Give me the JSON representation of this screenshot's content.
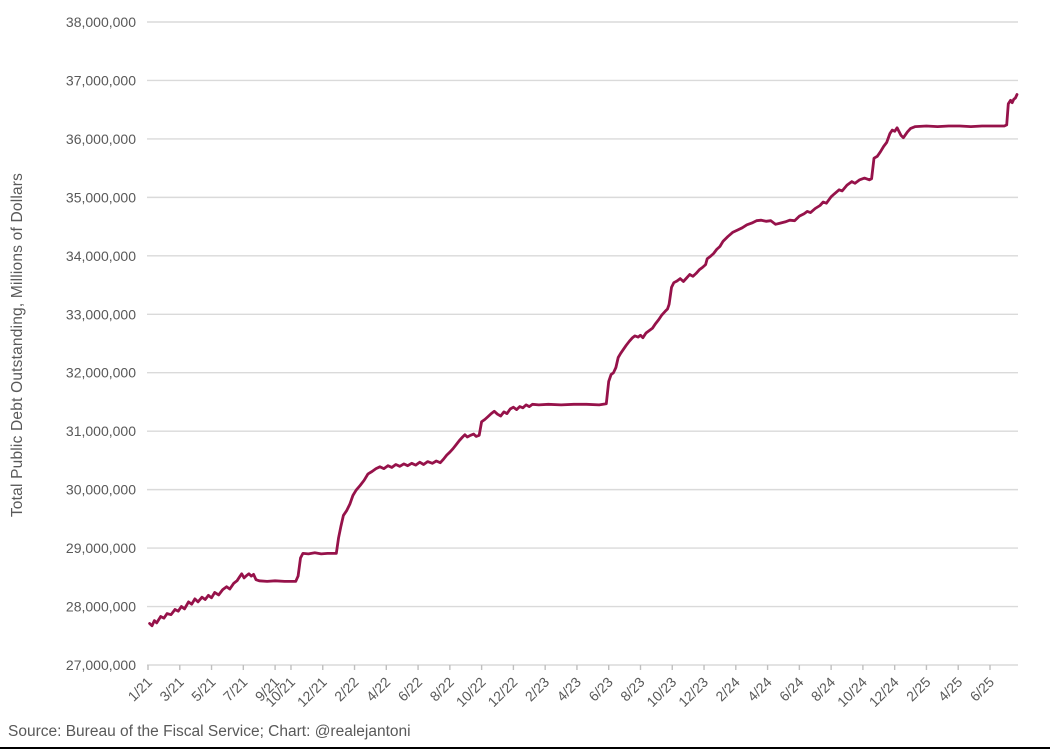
{
  "meta": {
    "source_caption": "Source: Bureau of the Fiscal Service; Chart: @realejantoni"
  },
  "colors": {
    "line": "#96124A",
    "grid": "#DADADA",
    "tick": "#BFBFBF",
    "text": "#595959",
    "background": "#FFFFFF",
    "bottom_border": "#000000"
  },
  "chart_data": {
    "type": "line",
    "title": "",
    "xlabel": "",
    "ylabel": "Total Public Debt Outstanding, Millions of Dollars",
    "grid": true,
    "legend_position": "none",
    "ylim": [
      27000000,
      38000000
    ],
    "y_tick_step": 1000000,
    "y_tick_labels": [
      "27,000,000",
      "28,000,000",
      "29,000,000",
      "30,000,000",
      "31,000,000",
      "32,000,000",
      "33,000,000",
      "34,000,000",
      "35,000,000",
      "36,000,000",
      "37,000,000",
      "38,000,000"
    ],
    "x_tick_labels": [
      "1/21",
      "3/21",
      "5/21",
      "7/21",
      "9/21",
      "10/21",
      "12/21",
      "2/22",
      "4/22",
      "6/22",
      "8/22",
      "10/22",
      "12/22",
      "2/23",
      "4/23",
      "6/23",
      "8/23",
      "10/23",
      "12/23",
      "2/24",
      "4/24",
      "6/24",
      "8/24",
      "10/24",
      "12/24",
      "2/25",
      "4/25",
      "6/25"
    ],
    "x_tick_months": [
      0,
      2,
      4,
      6,
      8,
      9,
      11,
      13,
      15,
      17,
      19,
      21,
      23,
      25,
      27,
      29,
      31,
      33,
      35,
      37,
      39,
      41,
      43,
      45,
      47,
      49,
      51,
      53
    ],
    "x_unit": "months since January 2021 (labels shown as month/year)",
    "series": [
      {
        "name": "Total Public Debt Outstanding, Millions of Dollars",
        "color": "#96124A",
        "points": [
          [
            0.1,
            27710000
          ],
          [
            0.25,
            27670000
          ],
          [
            0.4,
            27760000
          ],
          [
            0.55,
            27720000
          ],
          [
            0.8,
            27830000
          ],
          [
            1.0,
            27800000
          ],
          [
            1.2,
            27880000
          ],
          [
            1.45,
            27860000
          ],
          [
            1.7,
            27950000
          ],
          [
            1.9,
            27920000
          ],
          [
            2.1,
            28000000
          ],
          [
            2.3,
            27960000
          ],
          [
            2.55,
            28080000
          ],
          [
            2.75,
            28040000
          ],
          [
            2.95,
            28130000
          ],
          [
            3.15,
            28080000
          ],
          [
            3.4,
            28160000
          ],
          [
            3.6,
            28120000
          ],
          [
            3.8,
            28190000
          ],
          [
            4.0,
            28150000
          ],
          [
            4.2,
            28240000
          ],
          [
            4.45,
            28200000
          ],
          [
            4.7,
            28290000
          ],
          [
            4.95,
            28340000
          ],
          [
            5.15,
            28300000
          ],
          [
            5.4,
            28400000
          ],
          [
            5.6,
            28440000
          ],
          [
            5.75,
            28500000
          ],
          [
            5.9,
            28560000
          ],
          [
            6.05,
            28490000
          ],
          [
            6.2,
            28530000
          ],
          [
            6.35,
            28560000
          ],
          [
            6.5,
            28520000
          ],
          [
            6.65,
            28550000
          ],
          [
            6.8,
            28460000
          ],
          [
            7.0,
            28440000
          ],
          [
            7.5,
            28430000
          ],
          [
            8.0,
            28440000
          ],
          [
            8.6,
            28430000
          ],
          [
            9.3,
            28430000
          ],
          [
            9.45,
            28520000
          ],
          [
            9.6,
            28830000
          ],
          [
            9.75,
            28910000
          ],
          [
            10.1,
            28900000
          ],
          [
            10.5,
            28920000
          ],
          [
            10.9,
            28900000
          ],
          [
            11.3,
            28910000
          ],
          [
            11.85,
            28910000
          ],
          [
            12.0,
            29180000
          ],
          [
            12.15,
            29380000
          ],
          [
            12.3,
            29560000
          ],
          [
            12.5,
            29640000
          ],
          [
            12.7,
            29750000
          ],
          [
            12.9,
            29900000
          ],
          [
            13.1,
            29990000
          ],
          [
            13.35,
            30070000
          ],
          [
            13.6,
            30160000
          ],
          [
            13.85,
            30270000
          ],
          [
            14.1,
            30310000
          ],
          [
            14.35,
            30360000
          ],
          [
            14.6,
            30390000
          ],
          [
            14.85,
            30360000
          ],
          [
            15.1,
            30410000
          ],
          [
            15.35,
            30380000
          ],
          [
            15.6,
            30430000
          ],
          [
            15.85,
            30400000
          ],
          [
            16.1,
            30440000
          ],
          [
            16.35,
            30410000
          ],
          [
            16.6,
            30450000
          ],
          [
            16.85,
            30420000
          ],
          [
            17.1,
            30470000
          ],
          [
            17.35,
            30430000
          ],
          [
            17.6,
            30480000
          ],
          [
            17.9,
            30450000
          ],
          [
            18.15,
            30490000
          ],
          [
            18.4,
            30460000
          ],
          [
            18.6,
            30520000
          ],
          [
            18.8,
            30590000
          ],
          [
            19.0,
            30640000
          ],
          [
            19.2,
            30700000
          ],
          [
            19.4,
            30770000
          ],
          [
            19.6,
            30840000
          ],
          [
            19.8,
            30900000
          ],
          [
            19.95,
            30940000
          ],
          [
            20.1,
            30900000
          ],
          [
            20.3,
            30930000
          ],
          [
            20.5,
            30950000
          ],
          [
            20.65,
            30910000
          ],
          [
            20.85,
            30930000
          ],
          [
            21.0,
            31160000
          ],
          [
            21.2,
            31200000
          ],
          [
            21.4,
            31250000
          ],
          [
            21.6,
            31300000
          ],
          [
            21.8,
            31340000
          ],
          [
            22.0,
            31290000
          ],
          [
            22.2,
            31260000
          ],
          [
            22.4,
            31330000
          ],
          [
            22.6,
            31300000
          ],
          [
            22.8,
            31380000
          ],
          [
            23.0,
            31410000
          ],
          [
            23.2,
            31370000
          ],
          [
            23.4,
            31420000
          ],
          [
            23.6,
            31400000
          ],
          [
            23.8,
            31450000
          ],
          [
            24.0,
            31420000
          ],
          [
            24.2,
            31460000
          ],
          [
            24.6,
            31450000
          ],
          [
            25.2,
            31460000
          ],
          [
            26.0,
            31450000
          ],
          [
            26.8,
            31460000
          ],
          [
            27.6,
            31460000
          ],
          [
            28.4,
            31450000
          ],
          [
            28.85,
            31470000
          ],
          [
            29.0,
            31850000
          ],
          [
            29.15,
            31970000
          ],
          [
            29.3,
            32000000
          ],
          [
            29.45,
            32090000
          ],
          [
            29.6,
            32260000
          ],
          [
            29.75,
            32330000
          ],
          [
            29.9,
            32390000
          ],
          [
            30.1,
            32470000
          ],
          [
            30.3,
            32540000
          ],
          [
            30.5,
            32600000
          ],
          [
            30.65,
            32630000
          ],
          [
            30.85,
            32610000
          ],
          [
            31.0,
            32640000
          ],
          [
            31.15,
            32600000
          ],
          [
            31.35,
            32680000
          ],
          [
            31.55,
            32720000
          ],
          [
            31.75,
            32760000
          ],
          [
            31.95,
            32840000
          ],
          [
            32.15,
            32910000
          ],
          [
            32.35,
            32990000
          ],
          [
            32.55,
            33050000
          ],
          [
            32.7,
            33090000
          ],
          [
            32.8,
            33170000
          ],
          [
            32.95,
            33460000
          ],
          [
            33.1,
            33540000
          ],
          [
            33.3,
            33570000
          ],
          [
            33.5,
            33610000
          ],
          [
            33.7,
            33560000
          ],
          [
            33.9,
            33620000
          ],
          [
            34.1,
            33680000
          ],
          [
            34.3,
            33650000
          ],
          [
            34.5,
            33700000
          ],
          [
            34.7,
            33760000
          ],
          [
            34.9,
            33800000
          ],
          [
            35.1,
            33850000
          ],
          [
            35.2,
            33950000
          ],
          [
            35.4,
            33990000
          ],
          [
            35.6,
            34040000
          ],
          [
            35.8,
            34110000
          ],
          [
            36.0,
            34160000
          ],
          [
            36.2,
            34250000
          ],
          [
            36.5,
            34330000
          ],
          [
            36.8,
            34400000
          ],
          [
            37.1,
            34440000
          ],
          [
            37.4,
            34480000
          ],
          [
            37.7,
            34530000
          ],
          [
            38.0,
            34560000
          ],
          [
            38.3,
            34600000
          ],
          [
            38.6,
            34610000
          ],
          [
            38.9,
            34590000
          ],
          [
            39.2,
            34600000
          ],
          [
            39.5,
            34540000
          ],
          [
            39.8,
            34560000
          ],
          [
            40.1,
            34580000
          ],
          [
            40.4,
            34610000
          ],
          [
            40.7,
            34600000
          ],
          [
            41.0,
            34680000
          ],
          [
            41.3,
            34720000
          ],
          [
            41.5,
            34760000
          ],
          [
            41.7,
            34740000
          ],
          [
            42.0,
            34810000
          ],
          [
            42.3,
            34860000
          ],
          [
            42.5,
            34920000
          ],
          [
            42.7,
            34900000
          ],
          [
            43.0,
            35010000
          ],
          [
            43.2,
            35060000
          ],
          [
            43.5,
            35130000
          ],
          [
            43.7,
            35110000
          ],
          [
            44.0,
            35210000
          ],
          [
            44.3,
            35270000
          ],
          [
            44.5,
            35240000
          ],
          [
            44.8,
            35300000
          ],
          [
            45.1,
            35330000
          ],
          [
            45.4,
            35300000
          ],
          [
            45.55,
            35320000
          ],
          [
            45.7,
            35670000
          ],
          [
            45.9,
            35700000
          ],
          [
            46.1,
            35780000
          ],
          [
            46.3,
            35870000
          ],
          [
            46.5,
            35940000
          ],
          [
            46.7,
            36090000
          ],
          [
            46.85,
            36150000
          ],
          [
            47.0,
            36130000
          ],
          [
            47.15,
            36190000
          ],
          [
            47.4,
            36060000
          ],
          [
            47.55,
            36020000
          ],
          [
            47.8,
            36120000
          ],
          [
            48.0,
            36180000
          ],
          [
            48.3,
            36210000
          ],
          [
            49.0,
            36220000
          ],
          [
            49.7,
            36210000
          ],
          [
            50.4,
            36220000
          ],
          [
            51.1,
            36220000
          ],
          [
            51.8,
            36210000
          ],
          [
            52.5,
            36220000
          ],
          [
            53.2,
            36220000
          ],
          [
            53.9,
            36220000
          ],
          [
            54.05,
            36240000
          ],
          [
            54.15,
            36600000
          ],
          [
            54.3,
            36660000
          ],
          [
            54.4,
            36620000
          ],
          [
            54.5,
            36680000
          ],
          [
            54.6,
            36700000
          ],
          [
            54.7,
            36760000
          ]
        ]
      }
    ]
  }
}
